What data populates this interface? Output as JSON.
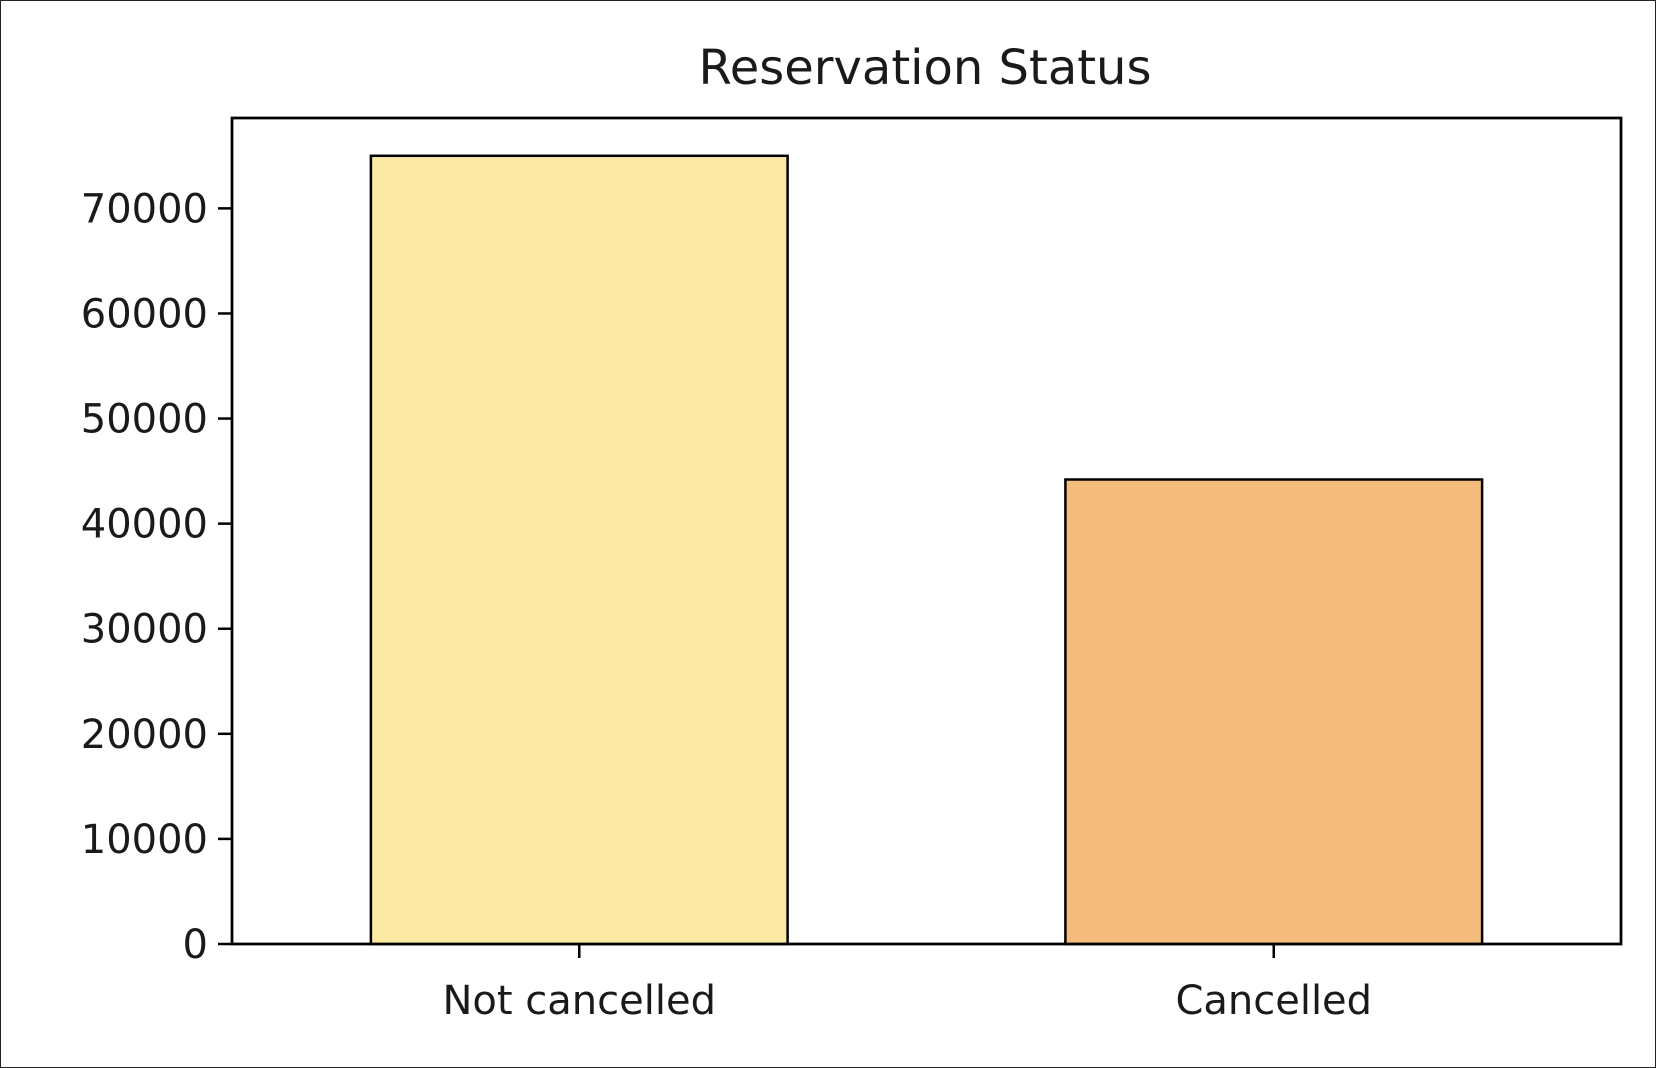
{
  "chart_data": {
    "type": "bar",
    "title": "Reservation Status",
    "xlabel": "",
    "ylabel": "",
    "categories": [
      "Not cancelled",
      "Cancelled"
    ],
    "values": [
      75000,
      44200
    ],
    "colors": [
      "#FCEAA4",
      "#F4BC7C"
    ],
    "edge_color": "#000000",
    "ylim": [
      0,
      78600
    ],
    "yticks": [
      0,
      10000,
      20000,
      30000,
      40000,
      50000,
      60000,
      70000
    ],
    "ytick_labels": [
      "0",
      "10000",
      "20000",
      "30000",
      "40000",
      "50000",
      "60000",
      "70000"
    ],
    "grid": false,
    "legend": "none"
  }
}
